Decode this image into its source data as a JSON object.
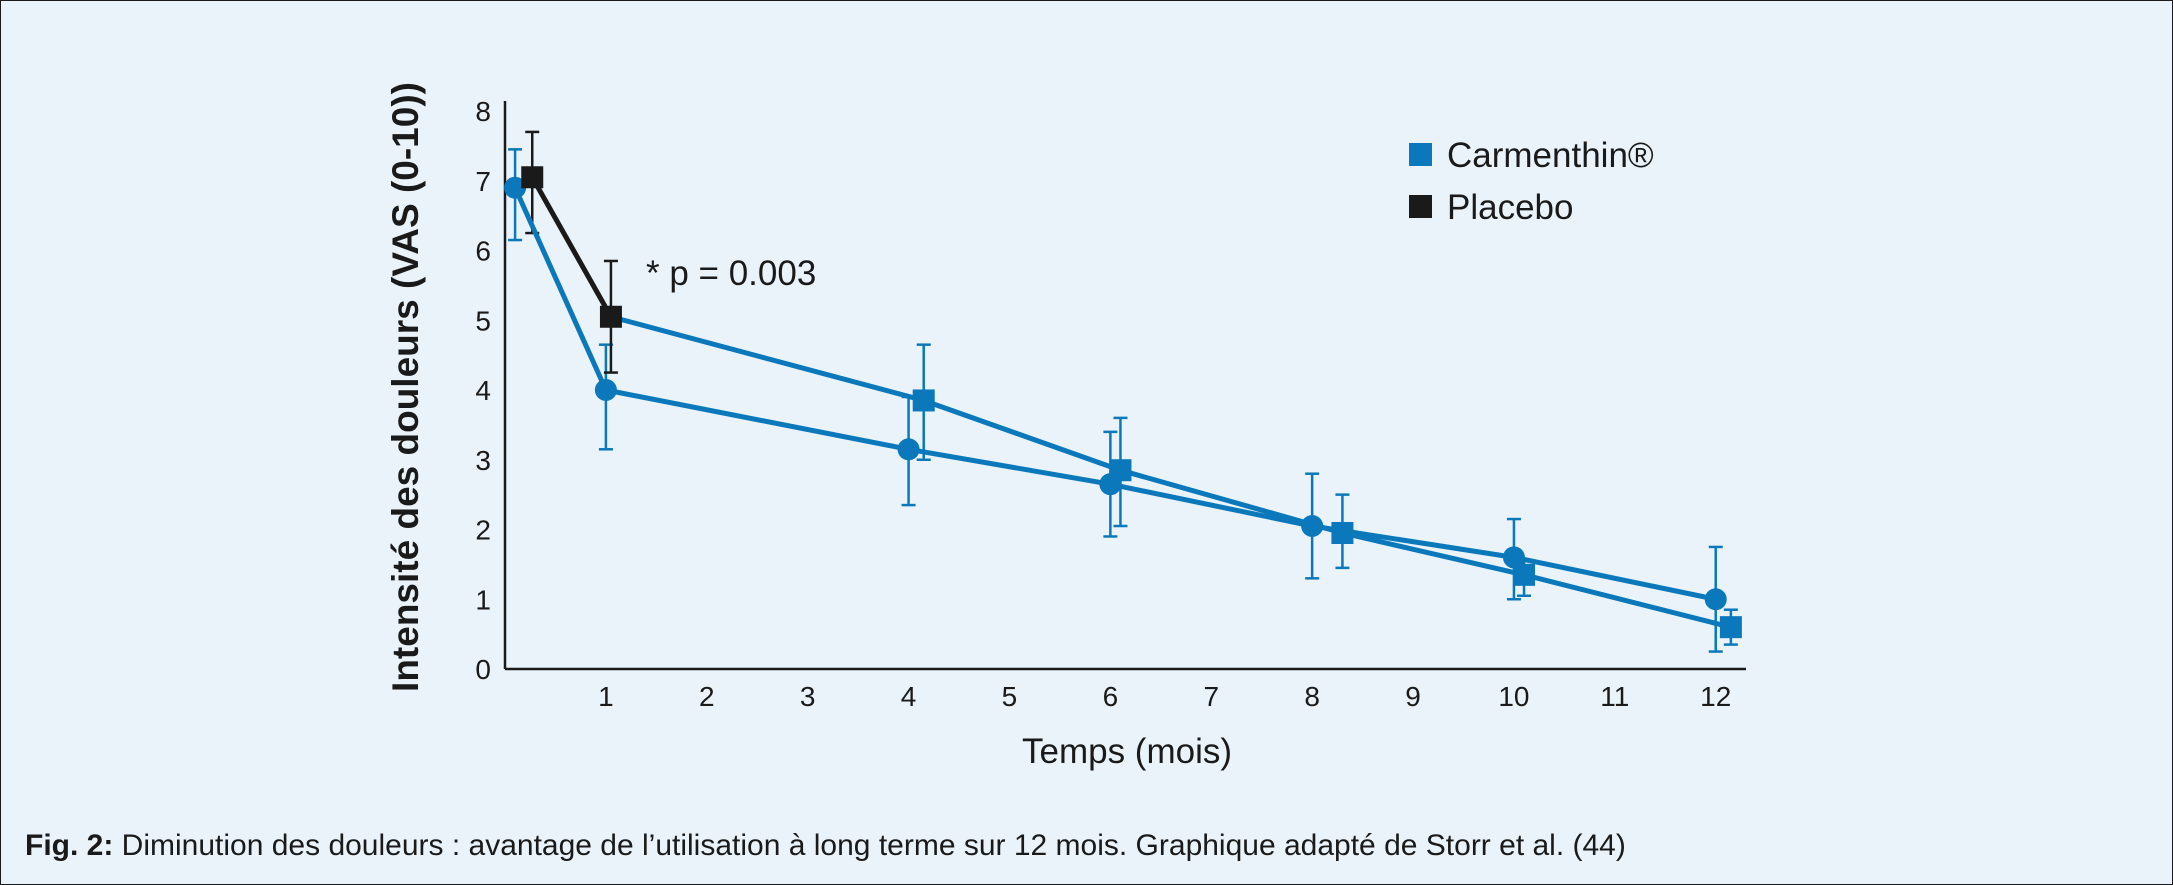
{
  "chart_data": {
    "type": "line",
    "xlabel": "Temps (mois)",
    "ylabel": "Intensité des douleurs (VAS (0-10))",
    "xlim": [
      0,
      12.3
    ],
    "ylim": [
      0,
      8
    ],
    "x_ticks": [
      "1",
      "2",
      "3",
      "4",
      "5",
      "6",
      "7",
      "8",
      "9",
      "10",
      "11",
      "12"
    ],
    "y_ticks": [
      "0",
      "1",
      "2",
      "3",
      "4",
      "5",
      "6",
      "7",
      "8"
    ],
    "series": [
      {
        "name": "Carmenthin®",
        "color": "#0a78bb",
        "marker": "circle",
        "points": [
          {
            "x": 0.1,
            "y": 6.9,
            "err": [
              6.15,
              7.45
            ]
          },
          {
            "x": 1,
            "y": 4.0,
            "err": [
              3.15,
              4.65
            ]
          },
          {
            "x": 4,
            "y": 3.15,
            "err": [
              2.35,
              3.9
            ]
          },
          {
            "x": 6,
            "y": 2.65,
            "err": [
              1.9,
              3.4
            ]
          },
          {
            "x": 8,
            "y": 2.05,
            "err": [
              1.3,
              2.8
            ]
          },
          {
            "x": 10,
            "y": 1.6,
            "err": [
              1.0,
              2.15
            ]
          },
          {
            "x": 12,
            "y": 1.0,
            "err": [
              0.25,
              1.75
            ]
          }
        ]
      },
      {
        "name": "Placebo",
        "color": "#1a1a1a",
        "marker": "square",
        "color_after_month_1": "#0a78bb",
        "points": [
          {
            "x": 0.27,
            "y": 7.05,
            "err": [
              6.25,
              7.7
            ]
          },
          {
            "x": 1.05,
            "y": 5.05,
            "err": [
              4.25,
              5.85
            ]
          },
          {
            "x": 4.15,
            "y": 3.85,
            "err": [
              3.0,
              4.65
            ]
          },
          {
            "x": 6.1,
            "y": 2.85,
            "err": [
              2.05,
              3.6
            ]
          },
          {
            "x": 8.3,
            "y": 1.95,
            "err": [
              1.45,
              2.5
            ]
          },
          {
            "x": 10.1,
            "y": 1.35,
            "err": [
              1.05,
              1.55
            ]
          },
          {
            "x": 12.15,
            "y": 0.6,
            "err": [
              0.35,
              0.85
            ]
          }
        ]
      }
    ],
    "annotation": "* p = 0.003",
    "legend": {
      "position": "top-right",
      "entries": [
        {
          "label": "Carmenthin®",
          "color": "#0a78bb"
        },
        {
          "label": "Placebo",
          "color": "#1a1a1a"
        }
      ]
    }
  },
  "caption": {
    "label": "Fig. 2:",
    "text": " Diminution des douleurs : avantage de l’utilisation à long terme sur 12 mois. Graphique adapté de Storr et al. (44)"
  }
}
